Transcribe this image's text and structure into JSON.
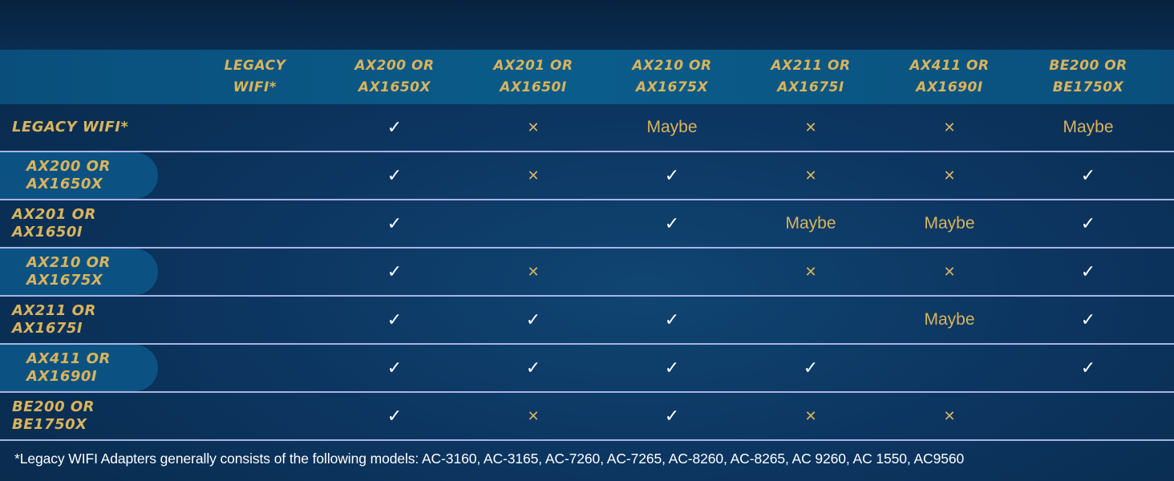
{
  "colors": {
    "accent_gold": "#d9b45c",
    "header_band": "#0a5680",
    "background": "#0c3560",
    "divider": "#a9b3e6"
  },
  "columns": [
    "LEGACY\nWIFI*",
    "AX200 OR\nAX1650X",
    "AX201 OR\nAX1650I",
    "AX210 OR\nAX1675X",
    "AX211 OR\nAX1675I",
    "AX411 OR\nAX1690I",
    "BE200 OR\nBE1750X"
  ],
  "symbols": {
    "check": "✓",
    "x": "✕"
  },
  "rows": [
    {
      "label": "LEGACY WIFI*",
      "highlight": false,
      "cells": [
        "",
        "check",
        "x",
        "Maybe",
        "x",
        "x",
        "Maybe"
      ]
    },
    {
      "label": "AX200 OR\nAX1650X",
      "highlight": true,
      "cells": [
        "",
        "check",
        "x",
        "check",
        "x",
        "x",
        "check"
      ]
    },
    {
      "label": "AX201 OR\nAX1650I",
      "highlight": false,
      "cells": [
        "",
        "check",
        "",
        "check",
        "Maybe",
        "Maybe",
        "check"
      ]
    },
    {
      "label": "AX210 OR\nAX1675X",
      "highlight": true,
      "cells": [
        "",
        "check",
        "x",
        "",
        "x",
        "x",
        "check"
      ]
    },
    {
      "label": "AX211 OR\nAX1675I",
      "highlight": false,
      "cells": [
        "",
        "check",
        "check",
        "check",
        "",
        "Maybe",
        "check"
      ]
    },
    {
      "label": "AX411 OR\nAX1690I",
      "highlight": true,
      "cells": [
        "",
        "check",
        "check",
        "check",
        "check",
        "",
        "check"
      ]
    },
    {
      "label": "BE200 OR\nBE1750X",
      "highlight": false,
      "cells": [
        "",
        "check",
        "x",
        "check",
        "x",
        "x",
        ""
      ]
    }
  ],
  "footnote": "*Legacy WIFI Adapters generally consists of the following models: AC-3160, AC-3165, AC-7260, AC-7265, AC-8260, AC-8265, AC 9260, AC 1550, AC9560"
}
